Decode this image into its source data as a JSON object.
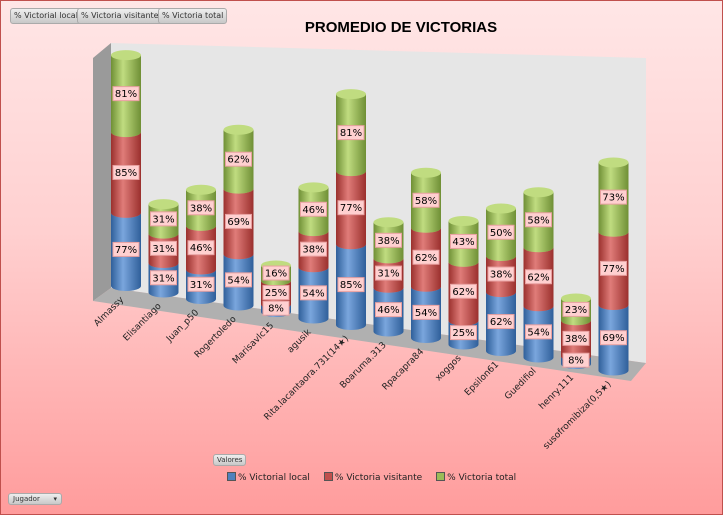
{
  "field_buttons": [
    "% Victorial local",
    "% Victoria visitante",
    "% Victoria total"
  ],
  "values_button": "Valores",
  "axis_button": "Jugador",
  "dropdown_icon": "triangle-down-icon",
  "chart_data": {
    "type": "bar",
    "subtype": "3d-stacked-cylinder",
    "title": "PROMEDIO DE VICTORIAS",
    "categories": [
      "Almassy",
      "Elisantiago",
      "Juan_p50",
      "Rogertoledo",
      "Marisavlc15",
      "agusik",
      "Rita.lacantaora.731(14★)",
      "Boaruma.313",
      "Rpacapra84",
      "xoggos",
      "Epsilon61",
      "Guedifiol",
      "henry.111",
      "susofromibiza(0,5★)"
    ],
    "series": [
      {
        "name": "% Victorial local",
        "color": "#4f81bd",
        "values": [
          77,
          31,
          31,
          54,
          8,
          54,
          85,
          46,
          54,
          25,
          62,
          54,
          8,
          69
        ]
      },
      {
        "name": "% Victoria visitante",
        "color": "#c0504d",
        "values": [
          85,
          31,
          46,
          69,
          25,
          38,
          77,
          31,
          62,
          62,
          38,
          62,
          38,
          77
        ]
      },
      {
        "name": "% Victoria total",
        "color": "#9bbb59",
        "values": [
          81,
          31,
          38,
          62,
          16,
          46,
          81,
          38,
          58,
          43,
          50,
          58,
          23,
          73
        ]
      }
    ],
    "legend": "bottom",
    "value_suffix": "%"
  }
}
